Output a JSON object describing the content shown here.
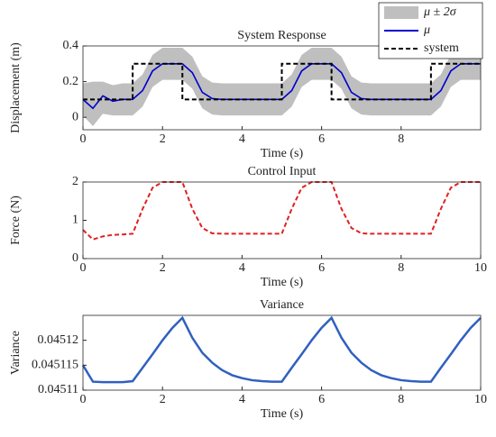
{
  "chart_data": [
    {
      "type": "line",
      "title": "System Response",
      "xlabel": "Time (s)",
      "ylabel": "Displacement (m)",
      "xlim": [
        0,
        10
      ],
      "xticks": [
        0,
        2,
        4,
        6,
        8
      ],
      "ylim": [
        -0.07,
        0.4
      ],
      "yticks": [
        0,
        0.2,
        0.4
      ],
      "grid": false,
      "legend": "upper right",
      "x": [
        0,
        0.25,
        0.5,
        0.75,
        1,
        1.25,
        1.5,
        1.75,
        2,
        2.25,
        2.5,
        2.75,
        3,
        3.25,
        3.5,
        3.75,
        4,
        4.25,
        4.5,
        4.75,
        5,
        5.25,
        5.5,
        5.75,
        6,
        6.25,
        6.5,
        6.75,
        7,
        7.25,
        7.5,
        7.75,
        8,
        8.25,
        8.5,
        8.75,
        9,
        9.25,
        9.5,
        9.75,
        10
      ],
      "series": [
        {
          "name": "μ ± 2σ",
          "color": "#bfbfbf",
          "upper": [
            0.19,
            0.2,
            0.2,
            0.18,
            0.19,
            0.19,
            0.24,
            0.35,
            0.39,
            0.39,
            0.39,
            0.34,
            0.23,
            0.195,
            0.19,
            0.19,
            0.19,
            0.19,
            0.19,
            0.19,
            0.19,
            0.24,
            0.35,
            0.39,
            0.39,
            0.39,
            0.34,
            0.23,
            0.195,
            0.19,
            0.19,
            0.19,
            0.19,
            0.19,
            0.19,
            0.19,
            0.24,
            0.35,
            0.39,
            0.39,
            0.39
          ],
          "lower": [
            0.01,
            -0.05,
            0.02,
            0.01,
            0.01,
            0.01,
            0.06,
            0.17,
            0.21,
            0.21,
            0.21,
            0.16,
            0.05,
            0.015,
            0.01,
            0.01,
            0.01,
            0.01,
            0.01,
            0.01,
            0.01,
            0.06,
            0.17,
            0.21,
            0.21,
            0.21,
            0.16,
            0.05,
            0.015,
            0.01,
            0.01,
            0.01,
            0.01,
            0.01,
            0.01,
            0.01,
            0.06,
            0.17,
            0.21,
            0.21,
            0.21
          ]
        },
        {
          "name": "μ",
          "color": "#0000cc",
          "line_style": "solid",
          "values": [
            0.1,
            0.05,
            0.12,
            0.09,
            0.1,
            0.1,
            0.15,
            0.26,
            0.3,
            0.3,
            0.3,
            0.25,
            0.14,
            0.105,
            0.1,
            0.1,
            0.1,
            0.1,
            0.1,
            0.1,
            0.1,
            0.15,
            0.26,
            0.3,
            0.3,
            0.3,
            0.25,
            0.14,
            0.105,
            0.1,
            0.1,
            0.1,
            0.1,
            0.1,
            0.1,
            0.1,
            0.15,
            0.26,
            0.3,
            0.3,
            0.3
          ]
        },
        {
          "name": "system",
          "color": "#000000",
          "line_style": "dashed",
          "x": [
            0,
            1.25,
            1.25,
            2.5,
            2.5,
            5,
            5,
            6.25,
            6.25,
            8.75,
            8.75,
            10
          ],
          "values": [
            0.1,
            0.1,
            0.3,
            0.3,
            0.1,
            0.1,
            0.3,
            0.3,
            0.1,
            0.1,
            0.3,
            0.3
          ]
        }
      ]
    },
    {
      "type": "line",
      "title": "Control Input",
      "xlabel": "Time (s)",
      "ylabel": "Force (N)",
      "xlim": [
        0,
        10
      ],
      "xticks": [
        0,
        2,
        4,
        6,
        8,
        10
      ],
      "ylim": [
        0,
        2
      ],
      "yticks": [
        0,
        1,
        2
      ],
      "grid": false,
      "x": [
        0,
        0.25,
        0.5,
        0.75,
        1,
        1.25,
        1.5,
        1.75,
        2,
        2.25,
        2.5,
        2.75,
        3,
        3.25,
        3.5,
        3.75,
        4,
        4.25,
        4.5,
        4.75,
        5,
        5.25,
        5.5,
        5.75,
        6,
        6.25,
        6.5,
        6.75,
        7,
        7.25,
        7.5,
        7.75,
        8,
        8.25,
        8.5,
        8.75,
        9,
        9.25,
        9.5,
        9.75,
        10
      ],
      "series": [
        {
          "color": "#e02020",
          "line_style": "dashed",
          "values": [
            0.75,
            0.5,
            0.58,
            0.62,
            0.63,
            0.65,
            1.3,
            1.85,
            2,
            2,
            2,
            1.3,
            0.8,
            0.66,
            0.65,
            0.65,
            0.65,
            0.65,
            0.65,
            0.65,
            0.65,
            1.3,
            1.85,
            2,
            2,
            2,
            1.3,
            0.8,
            0.66,
            0.65,
            0.65,
            0.65,
            0.65,
            0.65,
            0.65,
            0.65,
            1.3,
            1.85,
            2,
            2,
            2
          ]
        }
      ]
    },
    {
      "type": "line",
      "title": "Variance",
      "xlabel": "Time (s)",
      "ylabel": "Variance",
      "xlim": [
        0,
        10
      ],
      "xticks": [
        0,
        2,
        4,
        6,
        8,
        10
      ],
      "ylim": [
        0.04511,
        0.045125
      ],
      "yticks": [
        0.04511,
        0.045115,
        0.04512
      ],
      "grid": false,
      "x": [
        0,
        0.25,
        0.5,
        0.75,
        1,
        1.25,
        1.5,
        1.75,
        2,
        2.25,
        2.5,
        2.75,
        3,
        3.25,
        3.5,
        3.75,
        4,
        4.25,
        4.5,
        4.75,
        5,
        5.25,
        5.5,
        5.75,
        6,
        6.25,
        6.5,
        6.75,
        7,
        7.25,
        7.5,
        7.75,
        8,
        8.25,
        8.5,
        8.75,
        9,
        9.25,
        9.5,
        9.75,
        10
      ],
      "series": [
        {
          "color": "#3060c0",
          "line_style": "solid",
          "values": [
            0.045115,
            0.0451117,
            0.0451116,
            0.0451116,
            0.0451116,
            0.0451118,
            0.0451145,
            0.0451172,
            0.04512,
            0.0451225,
            0.0451245,
            0.0451205,
            0.0451175,
            0.0451155,
            0.045114,
            0.045113,
            0.0451124,
            0.045112,
            0.0451118,
            0.0451117,
            0.0451117,
            0.0451145,
            0.0451172,
            0.04512,
            0.0451225,
            0.0451245,
            0.0451205,
            0.0451175,
            0.0451155,
            0.045114,
            0.045113,
            0.0451124,
            0.045112,
            0.0451118,
            0.0451117,
            0.0451117,
            0.0451145,
            0.0451172,
            0.04512,
            0.0451225,
            0.0451245
          ]
        }
      ]
    }
  ]
}
